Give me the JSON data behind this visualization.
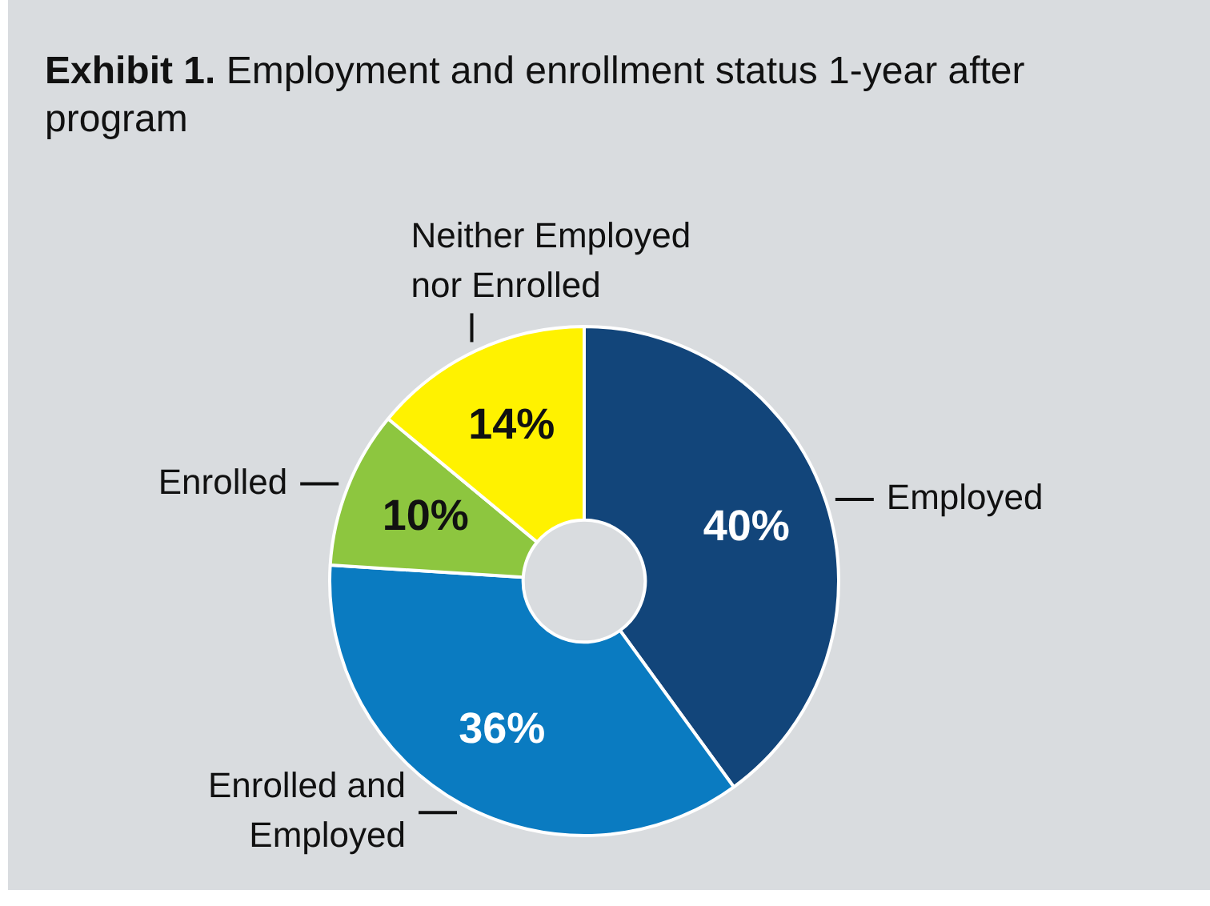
{
  "chart_data": {
    "type": "donut",
    "title": "Exhibit 1. Employment and enrollment status 1-year after program",
    "categories": [
      "Employed",
      "Enrolled and Employed",
      "Enrolled",
      "Neither Employed nor Enrolled"
    ],
    "values": [
      40,
      36,
      10,
      14
    ],
    "colors": [
      "#12457a",
      "#0a7bc1",
      "#8dc63f",
      "#fff200"
    ],
    "value_labels": [
      "40%",
      "36%",
      "10%",
      "14%"
    ],
    "legend": false
  }
}
